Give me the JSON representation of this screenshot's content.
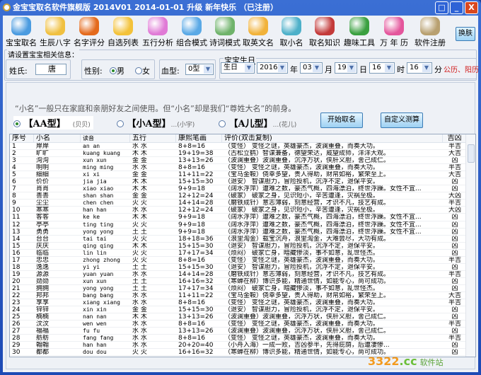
{
  "window": {
    "title": "金宝宝取名软件旗舰版 2014V01  2014-01-01 升级 新年快乐  （已注册）",
    "controls": [
      "□",
      "_",
      "X"
    ]
  },
  "toolbar": {
    "items": [
      {
        "label": "宝宝取名",
        "icon": "users-icon",
        "color": "#4a9be0"
      },
      {
        "label": "生辰八字",
        "icon": "magnifier-icon",
        "color": "#f0c040"
      },
      {
        "label": "名字评分",
        "icon": "globe-icon",
        "color": "#e46a1c"
      },
      {
        "label": "自选列表",
        "icon": "star-icon",
        "color": "#f3c23a"
      },
      {
        "label": "五行分析",
        "icon": "gear-icon",
        "color": "#e07ad6"
      },
      {
        "label": "组合模式",
        "icon": "chat-user-icon",
        "color": "#5aa9e6"
      },
      {
        "label": "诗词模式",
        "icon": "book-user-icon",
        "color": "#6fb36b"
      },
      {
        "label": "取英文名",
        "icon": "star-icon",
        "color": "#f1b23a"
      },
      {
        "label": "取小名",
        "icon": "globe-user-icon",
        "color": "#4db0c9"
      },
      {
        "label": "取名知识",
        "icon": "cubes-icon",
        "color": "#c33a3a"
      },
      {
        "label": "趣味工具",
        "icon": "recycle-icon",
        "color": "#3aa040"
      },
      {
        "label": "万 年 历",
        "icon": "folder-icon",
        "color": "#e4569c"
      },
      {
        "label": "软件注册",
        "icon": "keys-icon",
        "color": "#b8a070"
      }
    ],
    "skin_label": "换肤"
  },
  "form": {
    "group_title": "请设置宝宝相关信息：",
    "surname_label": "姓氏:",
    "surname_value": "唐",
    "gender_label": "性别:",
    "gender_options": [
      "男",
      "女"
    ],
    "gender_selected": "男",
    "blood_label": "血型:",
    "blood_value": "0型",
    "birthday": {
      "title": "宝宝生日",
      "type": "生日",
      "year": "2016",
      "year_unit": "年",
      "month": "03",
      "month_unit": "月",
      "day": "19",
      "day_unit": "日",
      "hour": "16",
      "hour_unit": "时",
      "minute": "16",
      "minute_unit": "分",
      "calendar_label": "公历、阳历"
    }
  },
  "hint": "“小名”一般只在家庭和亲朋好友之间使用。但“小名”却是我们“尊姓大名”的前身。",
  "name_types": [
    {
      "label": "【AA型】",
      "example": "(贝贝)",
      "selected": true
    },
    {
      "label": "【小A型】",
      "example": "...(小宇)",
      "selected": false
    },
    {
      "label": "【A儿型】",
      "example": "...(花儿)",
      "selected": false
    }
  ],
  "buttons": {
    "start": "开始取名",
    "custom": "自定义测算"
  },
  "table": {
    "headers": [
      "序号",
      "小名",
      "读音",
      "五行",
      "康熙笔画",
      "评价(双击复制)",
      "吉凶"
    ],
    "rows": [
      [
        "1",
        "岸岸",
        "an an",
        "水 水",
        "8+8=16",
        "（变怪） 变怪之谜，英雄豪杰，波澜重叠，而奏大功。",
        "半吉"
      ],
      [
        "2",
        "旷旷",
        "kuang kuang",
        "木 木",
        "19+19=38",
        "（古松立鹤）智谋兼备，德望荣达，威望成师，洋洋大观。",
        "大吉"
      ],
      [
        "3",
        "洵洵",
        "xun xun",
        "金 金",
        "13+13=26",
        "（波澜重叠）波澜重叠，沉浮万状，侠肝义胆，舍己成仁。",
        "凶"
      ],
      [
        "4",
        "明明",
        "ming ming",
        "水 水",
        "8+8=16",
        "（变怪） 变怪之谜，英雄豪杰，波澜重叠，而奏大功。",
        "半吉"
      ],
      [
        "5",
        "细细",
        "xi xi",
        "金 金",
        "11+11=22",
        "（宝马金鞍）侥幸多望，贵人得助，财帛如裕，繁荣至上。",
        "大吉"
      ],
      [
        "6",
        "价价",
        "jia jia",
        "木 木",
        "15+15=30",
        "（退安） 智谋胆力，冒险投机，沉浮不定，退保平安。",
        "凶"
      ],
      [
        "7",
        "肖肖",
        "xiao xiao",
        "木 木",
        "9+9=18",
        "（阔水浮萍）遭难之数，豪杰气概，四海漂泊，终世浮躁。女性不宜...",
        "凶"
      ],
      [
        "8",
        "善善",
        "shan shan",
        "金 金",
        "12+12=24",
        "（破家） 破家之身，见识短小，辛苦遭逢，灾祸至极。",
        "大凶"
      ],
      [
        "9",
        "尘尘",
        "chen chen",
        "火 火",
        "14+14=28",
        "（磨铁成针）意志薄弱，刻意经营，才识不凡，技艺有成。",
        "半吉"
      ],
      [
        "10",
        "寒寒",
        "han han",
        "水 水",
        "12+12=24",
        "（破家） 破家之身，见识短小，辛苦遭逢，灾祸至极。",
        "大凶"
      ],
      [
        "11",
        "客客",
        "ke ke",
        "木 木",
        "9+9=18",
        "（阔水浮萍）遭难之数，豪杰气概，四海漂泊，终世浮躁。女性不宜...",
        "凶"
      ],
      [
        "12",
        "亭亭",
        "ting ting",
        "火 火",
        "9+9=18",
        "（阔水浮萍）遭难之数，豪杰气概，四海漂泊，终世浮躁。女性不宜...",
        "凶"
      ],
      [
        "13",
        "勇勇",
        "yong yong",
        "土 土",
        "9+9=18",
        "（阔水浮萍）遭难之数，豪杰气概，四海漂泊，终世浮躁。女性不宜...",
        "凶"
      ],
      [
        "14",
        "台台",
        "tai tai",
        "火 火",
        "18+18=36",
        "（浪里淘金）载宝沉舟，浪里淘金，大难尝尽，大功有成。",
        "凶"
      ],
      [
        "15",
        "庆庆",
        "qing qing",
        "木 木",
        "15+15=30",
        "（退安） 智谋胆力，冒险投机，沉浮不定，退保平安。",
        "凶"
      ],
      [
        "16",
        "临临",
        "lin lin",
        "火 火",
        "17+17=34",
        "（烦闷） 破家亡身，暗藏惨淡，事不如意，乱世怪杰。",
        "凶"
      ],
      [
        "17",
        "忠忠",
        "zhong zhong",
        "火 火",
        "8+8=16",
        "（变怪） 变怪之谜，英雄豪杰，波澜重叠，而奏大功。",
        "半吉"
      ],
      [
        "18",
        "逸逸",
        "yi yi",
        "土 土",
        "15+15=30",
        "（退安） 智谋胆力，冒险投机，沉浮不定，退保平安。",
        "凶"
      ],
      [
        "19",
        "源源",
        "yuan yuan",
        "水 水",
        "14+14=28",
        "（磨铁成针）意志薄弱，刻意经营，才识不凡，技艺有成。",
        "半吉"
      ],
      [
        "20",
        "勋勋",
        "xun xun",
        "土 土",
        "16+16=32",
        "（寒蝉在柳）博识多能，精通世情，如能专心，尚可成功。",
        "凶"
      ],
      [
        "21",
        "拥拥",
        "yong yong",
        "土 土",
        "17+17=34",
        "（烦闷） 破家亡身，暗藏惨淡，事不如意，乱世怪杰。",
        "凶"
      ],
      [
        "22",
        "邦邦",
        "bang bang",
        "水 水",
        "11+11=22",
        "（宝马金鞍）侥幸多望，贵人得助，财帛如裕，繁荣至上。",
        "大吉"
      ],
      [
        "23",
        "享享",
        "xiang xiang",
        "水 水",
        "8+8=16",
        "（变怪） 变怪之谜，英雄豪杰，波澜重叠，而奏大功。",
        "半吉"
      ],
      [
        "24",
        "锌锌",
        "xin xin",
        "金 金",
        "15+15=30",
        "（退安） 智谋胆力，冒险投机，沉浮不定，退保平安。",
        "凶"
      ],
      [
        "25",
        "楠楠",
        "nan nan",
        "木 木",
        "13+13=26",
        "（波澜重叠）波澜重叠，沉浮万状，侠肝义胆，舍己成仁。",
        "凶"
      ],
      [
        "26",
        "汶汶",
        "wen wen",
        "水 水",
        "8+8=16",
        "（变怪） 变怪之谜，英雄豪杰，波澜重叠，而奏大功。",
        "半吉"
      ],
      [
        "27",
        "福福",
        "fu fu",
        "水 水",
        "13+13=26",
        "（波澜重叠）波澜重叠，沉浮万状，侠肝义胆，舍己成仁。",
        "凶"
      ],
      [
        "28",
        "舫舫",
        "fang fang",
        "水 水",
        "8+8=16",
        "（变怪） 变怪之谜，英雄豪杰，波澜重叠，而奏大功。",
        "半吉"
      ],
      [
        "29",
        "翰翰",
        "han han",
        "水 水",
        "20+20=40",
        "（小舟入海）一成一败，吉凶参半，先得庇荫，后遭凄惨...",
        "凶"
      ],
      [
        "30",
        "都都",
        "dou dou",
        "火 火",
        "16+16=32",
        "（寒蝉在柳）博识多能，精通世情，如能专心，尚可成功。",
        "凶"
      ]
    ]
  },
  "watermark": {
    "text": "3322",
    "suffix": ".cc",
    "tag": "软件站"
  }
}
